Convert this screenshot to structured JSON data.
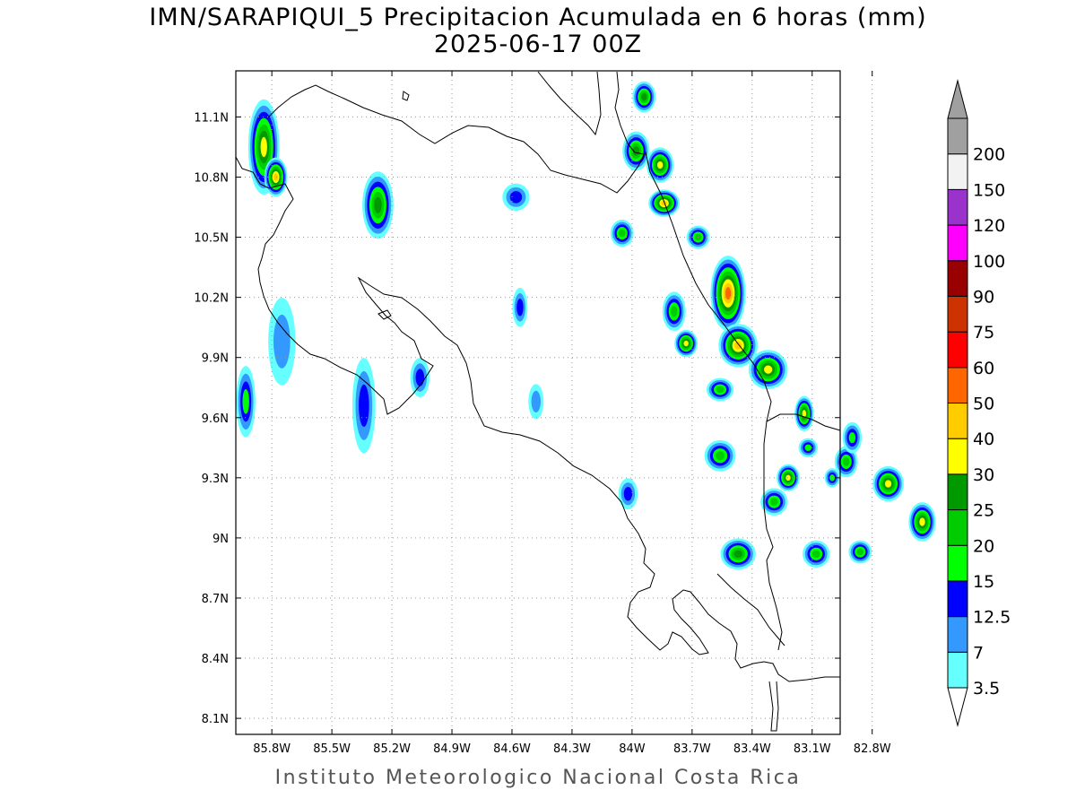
{
  "title": {
    "line1": "IMN/SARAPIQUI_5 Precipitacion Acumulada en 6 horas (mm)",
    "line2": "2025-06-17 00Z"
  },
  "credit": "Instituto Meteorologico Nacional Costa Rica",
  "map": {
    "lon_range": [
      -85.98,
      -82.96
    ],
    "lat_range": [
      8.02,
      11.33
    ],
    "lon_ticks": [
      {
        "value": -85.8,
        "label": "85.8W"
      },
      {
        "value": -85.5,
        "label": "85.5W"
      },
      {
        "value": -85.2,
        "label": "85.2W"
      },
      {
        "value": -84.9,
        "label": "84.9W"
      },
      {
        "value": -84.6,
        "label": "84.6W"
      },
      {
        "value": -84.3,
        "label": "84.3W"
      },
      {
        "value": -84.0,
        "label": "84W"
      },
      {
        "value": -83.7,
        "label": "83.7W"
      },
      {
        "value": -83.4,
        "label": "83.4W"
      },
      {
        "value": -83.1,
        "label": "83.1W"
      },
      {
        "value": -82.8,
        "label": "82.8W"
      }
    ],
    "lat_ticks": [
      {
        "value": 11.1,
        "label": "11.1N"
      },
      {
        "value": 10.8,
        "label": "10.8N"
      },
      {
        "value": 10.5,
        "label": "10.5N"
      },
      {
        "value": 10.2,
        "label": "10.2N"
      },
      {
        "value": 9.9,
        "label": "9.9N"
      },
      {
        "value": 9.6,
        "label": "9.6N"
      },
      {
        "value": 9.3,
        "label": "9.3N"
      },
      {
        "value": 9.0,
        "label": "9N"
      },
      {
        "value": 8.7,
        "label": "8.7N"
      },
      {
        "value": 8.4,
        "label": "8.4N"
      },
      {
        "value": 8.1,
        "label": "8.1N"
      }
    ],
    "grid": true
  },
  "colorbar": {
    "levels": [
      {
        "label": "3.5",
        "color": "#66ffff"
      },
      {
        "label": "7",
        "color": "#3399ff"
      },
      {
        "label": "12.5",
        "color": "#0000ff"
      },
      {
        "label": "15",
        "color": "#00ff00"
      },
      {
        "label": "20",
        "color": "#00cc00"
      },
      {
        "label": "25",
        "color": "#009900"
      },
      {
        "label": "30",
        "color": "#ffff00"
      },
      {
        "label": "40",
        "color": "#ffcc00"
      },
      {
        "label": "50",
        "color": "#ff6600"
      },
      {
        "label": "60",
        "color": "#ff0000"
      },
      {
        "label": "75",
        "color": "#cc3300"
      },
      {
        "label": "90",
        "color": "#990000"
      },
      {
        "label": "100",
        "color": "#ff00ff"
      },
      {
        "label": "120",
        "color": "#9933cc"
      },
      {
        "label": "150",
        "color": "#f2f2f2"
      },
      {
        "label": "200",
        "color": "#a0a0a0"
      }
    ]
  },
  "precip_cells": [
    {
      "lon": -85.84,
      "lat": 10.95,
      "rx": 0.06,
      "ry": 0.22,
      "cat": 6
    },
    {
      "lon": -85.78,
      "lat": 10.8,
      "rx": 0.04,
      "ry": 0.08,
      "cat": 7
    },
    {
      "lon": -85.27,
      "lat": 10.66,
      "rx": 0.06,
      "ry": 0.15,
      "cat": 5
    },
    {
      "lon": -85.93,
      "lat": 9.68,
      "rx": 0.03,
      "ry": 0.16,
      "cat": 3
    },
    {
      "lon": -85.75,
      "lat": 9.98,
      "rx": 0.05,
      "ry": 0.2,
      "cat": 1
    },
    {
      "lon": -85.34,
      "lat": 9.66,
      "rx": 0.04,
      "ry": 0.22,
      "cat": 2
    },
    {
      "lon": -85.06,
      "lat": 9.8,
      "rx": 0.03,
      "ry": 0.08,
      "cat": 2
    },
    {
      "lon": -84.58,
      "lat": 10.7,
      "rx": 0.05,
      "ry": 0.05,
      "cat": 2
    },
    {
      "lon": -84.56,
      "lat": 10.15,
      "rx": 0.02,
      "ry": 0.08,
      "cat": 2
    },
    {
      "lon": -84.05,
      "lat": 10.52,
      "rx": 0.04,
      "ry": 0.05,
      "cat": 4
    },
    {
      "lon": -83.98,
      "lat": 10.93,
      "rx": 0.05,
      "ry": 0.08,
      "cat": 5
    },
    {
      "lon": -83.86,
      "lat": 10.86,
      "rx": 0.05,
      "ry": 0.07,
      "cat": 6
    },
    {
      "lon": -83.84,
      "lat": 10.67,
      "rx": 0.06,
      "ry": 0.05,
      "cat": 7
    },
    {
      "lon": -83.94,
      "lat": 11.2,
      "rx": 0.04,
      "ry": 0.06,
      "cat": 5
    },
    {
      "lon": -83.67,
      "lat": 10.5,
      "rx": 0.04,
      "ry": 0.04,
      "cat": 4
    },
    {
      "lon": -83.79,
      "lat": 10.13,
      "rx": 0.04,
      "ry": 0.08,
      "cat": 4
    },
    {
      "lon": -83.73,
      "lat": 9.97,
      "rx": 0.04,
      "ry": 0.05,
      "cat": 6
    },
    {
      "lon": -83.52,
      "lat": 10.22,
      "rx": 0.07,
      "ry": 0.17,
      "cat": 8
    },
    {
      "lon": -83.47,
      "lat": 9.96,
      "rx": 0.08,
      "ry": 0.09,
      "cat": 7
    },
    {
      "lon": -83.32,
      "lat": 9.84,
      "rx": 0.08,
      "ry": 0.08,
      "cat": 6
    },
    {
      "lon": -83.56,
      "lat": 9.74,
      "rx": 0.05,
      "ry": 0.04,
      "cat": 4
    },
    {
      "lon": -83.14,
      "lat": 9.62,
      "rx": 0.03,
      "ry": 0.07,
      "cat": 6
    },
    {
      "lon": -83.56,
      "lat": 9.41,
      "rx": 0.06,
      "ry": 0.06,
      "cat": 4
    },
    {
      "lon": -83.22,
      "lat": 9.3,
      "rx": 0.04,
      "ry": 0.05,
      "cat": 6
    },
    {
      "lon": -83.29,
      "lat": 9.18,
      "rx": 0.05,
      "ry": 0.05,
      "cat": 4
    },
    {
      "lon": -83.47,
      "lat": 8.92,
      "rx": 0.07,
      "ry": 0.06,
      "cat": 5
    },
    {
      "lon": -83.08,
      "lat": 8.92,
      "rx": 0.05,
      "ry": 0.05,
      "cat": 4
    },
    {
      "lon": -82.93,
      "lat": 9.38,
      "rx": 0.04,
      "ry": 0.06,
      "cat": 4
    },
    {
      "lon": -82.72,
      "lat": 9.27,
      "rx": 0.06,
      "ry": 0.07,
      "cat": 6
    },
    {
      "lon": -82.55,
      "lat": 9.08,
      "rx": 0.05,
      "ry": 0.08,
      "cat": 6
    },
    {
      "lon": -82.86,
      "lat": 8.93,
      "rx": 0.04,
      "ry": 0.04,
      "cat": 4
    },
    {
      "lon": -84.02,
      "lat": 9.22,
      "rx": 0.03,
      "ry": 0.06,
      "cat": 2
    },
    {
      "lon": -84.48,
      "lat": 9.68,
      "rx": 0.02,
      "ry": 0.07,
      "cat": 1
    },
    {
      "lon": -83.12,
      "lat": 9.45,
      "rx": 0.03,
      "ry": 0.03,
      "cat": 3
    },
    {
      "lon": -83.0,
      "lat": 9.3,
      "rx": 0.02,
      "ry": 0.03,
      "cat": 3
    },
    {
      "lon": -82.9,
      "lat": 9.5,
      "rx": 0.03,
      "ry": 0.06,
      "cat": 3
    }
  ]
}
